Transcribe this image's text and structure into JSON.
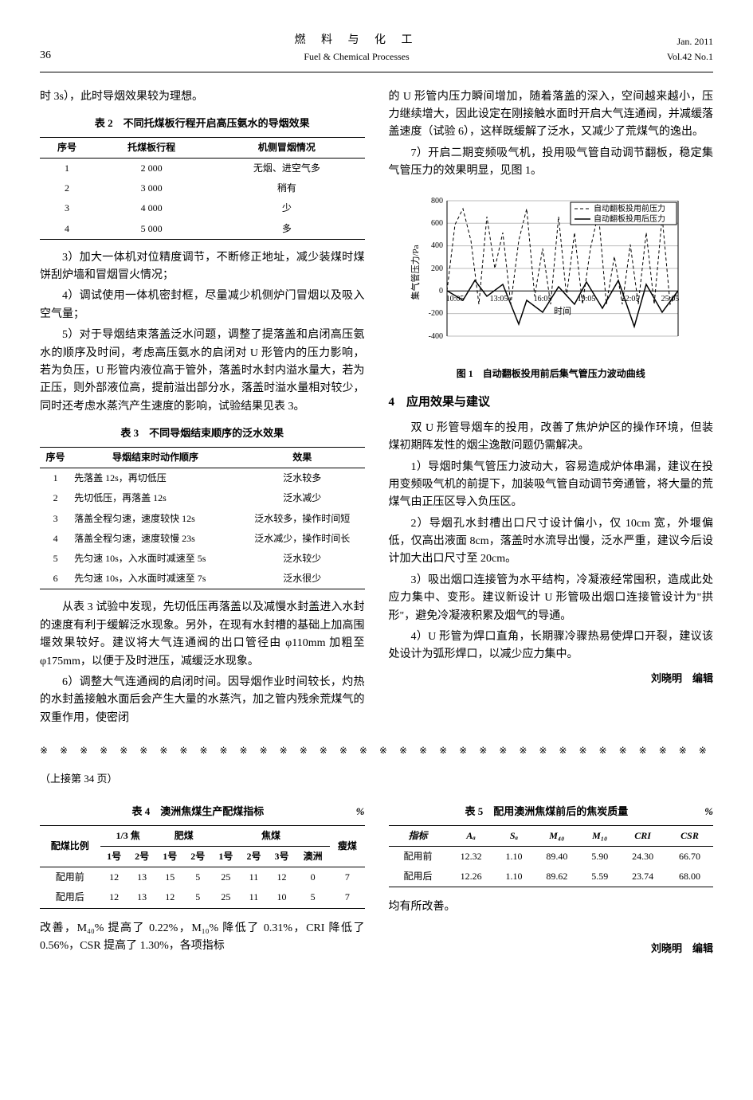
{
  "header": {
    "page_num": "36",
    "title_cn": "燃 料 与 化 工",
    "title_en": "Fuel & Chemical Processes",
    "date": "Jan. 2011",
    "vol": "Vol.42 No.1"
  },
  "left": {
    "p1": "时 3s），此时导烟效果较为理想。",
    "table2": {
      "title": "表 2　不同托煤板行程开启高压氨水的导烟效果",
      "headers": [
        "序号",
        "托煤板行程",
        "机侧冒烟情况"
      ],
      "rows": [
        [
          "1",
          "2 000",
          "无烟、进空气多"
        ],
        [
          "2",
          "3 000",
          "稍有"
        ],
        [
          "3",
          "4 000",
          "少"
        ],
        [
          "4",
          "5 000",
          "多"
        ]
      ]
    },
    "p3": "3）加大一体机对位精度调节，不断修正地址，减少装煤时煤饼刮炉墙和冒烟冒火情况；",
    "p4": "4）调试使用一体机密封框，尽量减少机侧炉门冒烟以及吸入空气量；",
    "p5": "5）对于导烟结束落盖泛水问题，调整了提落盖和启闭高压氨水的顺序及时间，考虑高压氨水的启闭对 U 形管内的压力影响，若为负压，U 形管内液位高于管外，落盖时水封内溢水量大，若为正压，则外部液位高，提前溢出部分水，落盖时溢水量相对较少，同时还考虑水蒸汽产生速度的影响，试验结果见表 3。",
    "table3": {
      "title": "表 3　不同导烟结束顺序的泛水效果",
      "headers": [
        "序号",
        "导烟结束时动作顺序",
        "效果"
      ],
      "rows": [
        [
          "1",
          "先落盖 12s，再切低压",
          "泛水较多"
        ],
        [
          "2",
          "先切低压，再落盖 12s",
          "泛水减少"
        ],
        [
          "3",
          "落盖全程匀速，速度较快 12s",
          "泛水较多，操作时间短"
        ],
        [
          "4",
          "落盖全程匀速，速度较慢 23s",
          "泛水减少，操作时间长"
        ],
        [
          "5",
          "先匀速 10s，入水面时减速至 5s",
          "泛水较少"
        ],
        [
          "6",
          "先匀速 10s，入水面时减速至 7s",
          "泛水很少"
        ]
      ]
    },
    "p6": "从表 3 试验中发现，先切低压再落盖以及减慢水封盖进入水封的速度有利于缓解泛水现象。另外，在现有水封槽的基础上加高围堰效果较好。建议将大气连通阀的出口管径由 φ110mm 加粗至 φ175mm，以便于及时泄压，减缓泛水现象。",
    "p7": "6）调整大气连通阀的启闭时间。因导烟作业时间较长，灼热的水封盖接触水面后会产生大量的水蒸汽，加之管内残余荒煤气的双重作用，使密闭"
  },
  "right": {
    "p1": "的 U 形管内压力瞬间增加，随着落盖的深入，空间越来越小，压力继续增大，因此设定在刚接触水面时开启大气连通阀，并减缓落盖速度（试验 6），这样既缓解了泛水，又减少了荒煤气的逸出。",
    "p2": "7）开启二期变频吸气机，投用吸气管自动调节翻板，稳定集气管压力的效果明显，见图 1。",
    "fig1": {
      "caption": "图 1　自动翻板投用前后集气管压力波动曲线",
      "ylabel": "集气管压力/Pa",
      "xlabel": "时间",
      "ylim": [
        -400,
        800
      ],
      "yticks": [
        -400,
        -200,
        0,
        200,
        400,
        600,
        800
      ],
      "xticks": [
        "10:05",
        "13:05",
        "16:05",
        "19:05",
        "22:05",
        "25:05"
      ],
      "legend": [
        "自动翻板投用前压力",
        "自动翻板投用后压力"
      ],
      "line_styles": [
        "dashed",
        "solid"
      ],
      "line_color": "#000000",
      "grid_color": "#e0e0e0",
      "background_color": "#ffffff"
    },
    "sec4_title": "4　应用效果与建议",
    "p3": "双 U 形管导烟车的投用，改善了焦炉炉区的操作环境，但装煤初期阵发性的烟尘逸散问题仍需解决。",
    "p4": "1）导烟时集气管压力波动大，容易造成炉体串漏，建议在投用变频吸气机的前提下，加装吸气管自动调节旁通管，将大量的荒煤气由正压区导入负压区。",
    "p5": "2）导烟孔水封槽出口尺寸设计偏小，仅 10cm 宽，外堰偏低，仅高出液面 8cm，落盖时水流导出慢，泛水严重，建议今后设计加大出口尺寸至 20cm。",
    "p6": "3）吸出烟口连接管为水平结构，冷凝液经常囤积，造成此处应力集中、变形。建议新设计 U 形管吸出烟口连接管设计为\"拱形\"，避免冷凝液积累及烟气的导通。",
    "p7": "4）U 形管为焊口直角，长期骤冷骤热易使焊口开裂，建议该处设计为弧形焊口，以减少应力集中。",
    "editor": "刘晓明　编辑"
  },
  "divider": "※ ※ ※ ※ ※ ※ ※ ※ ※ ※ ※ ※ ※ ※ ※ ※ ※ ※ ※ ※ ※ ※ ※ ※ ※ ※ ※ ※ ※ ※ ※ ※ ※ ※ ※ ※ ※ ※ ※ ※ ※ ※ ※",
  "continued": "（上接第 34 页）",
  "table4": {
    "title": "表 4　澳洲焦煤生产配煤指标",
    "unit": "%",
    "group_headers": [
      "配煤比例",
      "1/3 焦",
      "肥煤",
      "焦煤",
      "瘦煤"
    ],
    "sub_headers": [
      "",
      "1号",
      "2号",
      "1号",
      "2号",
      "1号",
      "2号",
      "3号",
      "澳洲",
      ""
    ],
    "rows": [
      [
        "配用前",
        "12",
        "13",
        "15",
        "5",
        "25",
        "11",
        "12",
        "0",
        "7"
      ],
      [
        "配用后",
        "12",
        "13",
        "12",
        "5",
        "25",
        "11",
        "10",
        "5",
        "7"
      ]
    ]
  },
  "bottom_left_text": "改善，M₄₀% 提高了 0.22%，M₁₀% 降低了 0.31%，CRI 降低了 0.56%，CSR 提高了 1.30%，各项指标",
  "table5": {
    "title": "表 5　配用澳洲焦煤前后的焦炭质量",
    "unit": "%",
    "headers": [
      "指标",
      "Aₐ",
      "Sₐ",
      "M₄₀",
      "M₁₀",
      "CRI",
      "CSR"
    ],
    "rows": [
      [
        "配用前",
        "12.32",
        "1.10",
        "89.40",
        "5.90",
        "24.30",
        "66.70"
      ],
      [
        "配用后",
        "12.26",
        "1.10",
        "89.62",
        "5.59",
        "23.74",
        "68.00"
      ]
    ]
  },
  "bottom_right_text": "均有所改善。",
  "bottom_editor": "刘晓明　编辑"
}
